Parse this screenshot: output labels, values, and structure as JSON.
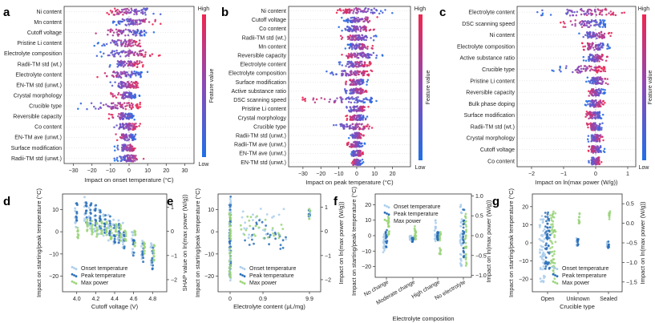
{
  "figure": {
    "panel_labels": [
      "a",
      "b",
      "c",
      "d",
      "e",
      "f",
      "g"
    ],
    "colors": {
      "low": "#1f6fe8",
      "high": "#f0264f",
      "onset": "#a9cdeb",
      "peak": "#2a6fb8",
      "maxpower": "#9ad47a"
    },
    "colorbar": {
      "high": "High",
      "low": "Low",
      "label": "Feature value"
    }
  },
  "chart_data": [
    {
      "type": "scatter",
      "subtype": "shap-beeswarm",
      "panel": "a",
      "xlabel": "Impact on onset temperature (°C)",
      "xlim": [
        -35,
        35
      ],
      "xticks": [
        "−30",
        "−20",
        "−10",
        "0",
        "10",
        "20",
        "30"
      ],
      "xtick_values": [
        -30,
        -20,
        -10,
        0,
        10,
        20,
        30
      ],
      "features": [
        "Ni content",
        "Mn content",
        "Cutoff voltage",
        "Pristine Li content",
        "Electrolyte composition",
        "Radii-TM std (wt.)",
        "Electrolyte content",
        "EN-TM std (unwt.)",
        "Crystal morphology",
        "Crucible type",
        "Reversible capacity",
        "Co content",
        "EN-TM ave (unwt.)",
        "Surface modification",
        "Radii-TM std (unwt.)"
      ],
      "spread": [
        [
          -15,
          19
        ],
        [
          -10,
          17
        ],
        [
          -20,
          14
        ],
        [
          -19,
          9
        ],
        [
          -18,
          17
        ],
        [
          -13,
          8
        ],
        [
          -18,
          10
        ],
        [
          -12,
          6
        ],
        [
          -10,
          6
        ],
        [
          -28,
          6
        ],
        [
          -12,
          4
        ],
        [
          -10,
          6
        ],
        [
          -8,
          4
        ],
        [
          -8,
          4
        ],
        [
          -8,
          8
        ]
      ],
      "high_side": [
        "L",
        "R",
        "L",
        "R",
        "R",
        "R",
        "L",
        "R",
        "L",
        "R",
        "L",
        "R",
        "L",
        "R",
        "R"
      ]
    },
    {
      "type": "scatter",
      "subtype": "shap-beeswarm",
      "panel": "b",
      "xlabel": "Impact on peak temperature (°C)",
      "xlim": [
        -38,
        30
      ],
      "xticks": [
        "−30",
        "−20",
        "−10",
        "0",
        "10",
        "20"
      ],
      "xtick_values": [
        -30,
        -20,
        -10,
        0,
        10,
        20
      ],
      "features": [
        "Ni content",
        "Cutoff voltage",
        "Co content",
        "Radii-TM std (wt.)",
        "Mn content",
        "Reversible capacity",
        "Electrolyte content",
        "Electrolyte composition",
        "Surface modification",
        "Active substance ratio",
        "DSC scanning speed",
        "Pristine Li content",
        "Crystal morphology",
        "Crucible type",
        "Radii-TM std (unwt.)",
        "Radii-TM ave (unwt.)",
        "EN-TM ave (unwt.)",
        "EN-TM std (unwt.)"
      ],
      "spread": [
        [
          -12,
          20
        ],
        [
          -9,
          12
        ],
        [
          -10,
          10
        ],
        [
          -9,
          11
        ],
        [
          -7,
          9
        ],
        [
          -9,
          15
        ],
        [
          -10,
          8
        ],
        [
          -18,
          9
        ],
        [
          -7,
          7
        ],
        [
          -8,
          7
        ],
        [
          -32,
          11
        ],
        [
          -8,
          7
        ],
        [
          -7,
          7
        ],
        [
          -18,
          12
        ],
        [
          -5,
          4
        ],
        [
          -6,
          5
        ],
        [
          -4,
          4
        ],
        [
          -4,
          4
        ]
      ],
      "high_side": [
        "L",
        "R",
        "R",
        "L",
        "R",
        "L",
        "R",
        "R",
        "L",
        "R",
        "L",
        "R",
        "L",
        "R",
        "R",
        "L",
        "R",
        "L"
      ]
    },
    {
      "type": "scatter",
      "subtype": "shap-beeswarm",
      "panel": "c",
      "xlabel": "Impact on ln(max power (W/g))",
      "xlim": [
        -2.45,
        1.25
      ],
      "xticks": [
        "−2",
        "−1",
        "0",
        "1"
      ],
      "xtick_values": [
        -2,
        -1,
        0,
        1
      ],
      "features": [
        "Electrolyte content",
        "DSC scanning speed",
        "Ni content",
        "Electrolyte composition",
        "Active substance ratio",
        "Crucible type",
        "Pristine Li content",
        "Reversible capacity",
        "Bulk phase doping",
        "Surface modification",
        "Radii-TM std (wt.)",
        "Crystal morphology",
        "Cutoff voltage",
        "Co content"
      ],
      "spread": [
        [
          -2.0,
          0.9
        ],
        [
          -1.1,
          0.4
        ],
        [
          -0.55,
          0.5
        ],
        [
          -0.45,
          0.45
        ],
        [
          -0.4,
          0.4
        ],
        [
          -1.4,
          0.3
        ],
        [
          -0.3,
          0.5
        ],
        [
          -0.3,
          0.3
        ],
        [
          -0.35,
          0.3
        ],
        [
          -0.35,
          0.25
        ],
        [
          -0.3,
          0.25
        ],
        [
          -0.25,
          0.25
        ],
        [
          -0.25,
          0.3
        ],
        [
          -0.25,
          0.2
        ]
      ],
      "high_side": [
        "R",
        "L",
        "R",
        "L",
        "R",
        "R",
        "R",
        "L",
        "R",
        "L",
        "L",
        "R",
        "L",
        "R"
      ]
    },
    {
      "type": "scatter",
      "subtype": "shap-dependence",
      "panel": "d",
      "xlabel": "Cutoff voltage (V)",
      "ylabel": "Impact on starting/peak temperature (°C)",
      "y2label": "SHAP value on ln(max power (W/g))",
      "xlim": [
        3.85,
        4.95
      ],
      "ylim": [
        -27,
        17
      ],
      "y2lim": [
        -2.5,
        1.55
      ],
      "xticks": [
        "4.0",
        "4.2",
        "4.4",
        "4.6",
        "4.8"
      ],
      "xtick_values": [
        4.0,
        4.2,
        4.4,
        4.6,
        4.8
      ],
      "yticks": [
        "−20",
        "−10",
        "0",
        "10"
      ],
      "ytick_values": [
        -20,
        -10,
        0,
        10
      ],
      "y2ticks": [
        "−2",
        "−1",
        "0",
        "1"
      ],
      "y2tick_values": [
        -2,
        -1,
        0,
        1
      ],
      "legend": [
        "Onset temperature",
        "Peak temperature",
        "Max power"
      ],
      "x": [
        4.0,
        4.1,
        4.15,
        4.2,
        4.25,
        4.3,
        4.35,
        4.4,
        4.45,
        4.5,
        4.6,
        4.7,
        4.8
      ],
      "series": [
        {
          "name": "Onset temperature",
          "means": [
            8,
            10,
            7,
            6,
            4,
            3,
            2,
            0,
            0,
            -2,
            -5,
            -8,
            -10
          ],
          "spread": 6
        },
        {
          "name": "Peak temperature",
          "means": [
            10,
            9,
            8,
            7,
            5,
            3,
            2,
            0,
            -1,
            -3,
            -6,
            -9,
            -12
          ],
          "spread": 5
        },
        {
          "name": "Max power",
          "means": [
            -0.1,
            0.2,
            0.15,
            0.1,
            0.1,
            0.05,
            0.0,
            0.0,
            -0.05,
            -0.1,
            -0.3,
            -0.6,
            -0.9
          ],
          "spread": 0.35
        }
      ]
    },
    {
      "type": "scatter",
      "subtype": "shap-dependence",
      "panel": "e",
      "xlabel": "Electrolyte content (μL/mg)",
      "ylabel": "Impact on starting/peak temperature (°C)",
      "y2label": "Impact on ln(max power (W/g))",
      "ylim": [
        -27,
        17
      ],
      "y2lim": [
        -2.5,
        1.55
      ],
      "xticks": [
        "0",
        "0.9",
        "9.9"
      ],
      "yticks": [
        "−20",
        "−10",
        "0",
        "10"
      ],
      "ytick_values": [
        -20,
        -10,
        0,
        10
      ],
      "y2ticks": [
        "−2",
        "−1",
        "0",
        "1"
      ],
      "y2tick_values": [
        -2,
        -1,
        0,
        1
      ],
      "legend": [
        "Onset temperature",
        "Peak temperature",
        "Max power"
      ],
      "note": "x axis is non-linear; groups at 0 (wide spread), 0.1–1.2 (cluster) and 9.9",
      "groups": [
        {
          "x": "0",
          "onset_range": [
            -22,
            15
          ],
          "peak_range": [
            -22,
            16
          ],
          "power_range": [
            -2.0,
            0.8
          ]
        },
        {
          "x": "0.1-1.2",
          "onset_range": [
            -4,
            12
          ],
          "peak_range": [
            -8,
            6
          ],
          "power_range": [
            -0.3,
            0.7
          ]
        },
        {
          "x": "9.9",
          "onset_range": [
            6,
            10
          ],
          "peak_range": [
            7,
            10
          ],
          "power_range": [
            0.5,
            1.0
          ]
        }
      ]
    },
    {
      "type": "scatter",
      "subtype": "shap-dependence",
      "panel": "f",
      "xlabel": "Electrolyte composition",
      "ylabel": "Impact on starting/peak temperature (°C)",
      "y2label": "Impact on ln(max power (W/g))",
      "ylim": [
        -27,
        27
      ],
      "y2lim": [
        -1.05,
        1.05
      ],
      "categories": [
        "No change",
        "Moderate change",
        "High change",
        "No electrolyte"
      ],
      "yticks": [
        "−20",
        "−10",
        "0",
        "10",
        "20"
      ],
      "ytick_values": [
        -20,
        -10,
        0,
        10,
        20
      ],
      "y2ticks": [
        "−1.0",
        "−0.5",
        "0.0",
        "0.5",
        "1.0"
      ],
      "y2tick_values": [
        -1.0,
        -0.5,
        0.0,
        0.5,
        1.0
      ],
      "legend": [
        "Onset temperature",
        "Peak temperature",
        "Max power"
      ],
      "series": [
        {
          "name": "Onset temperature",
          "ranges": [
            [
              -11,
              3
            ],
            [
              -3,
              0
            ],
            [
              -4,
              10
            ],
            [
              -20,
              20
            ]
          ]
        },
        {
          "name": "Peak temperature",
          "ranges": [
            [
              -8,
              4
            ],
            [
              -4,
              -1
            ],
            [
              -3,
              3
            ],
            [
              -15,
              17
            ]
          ]
        },
        {
          "name": "Max power",
          "ranges": [
            [
              0.0,
              0.5
            ],
            [
              -0.1,
              0.25
            ],
            [
              -0.5,
              0.1
            ],
            [
              -0.85,
              0.55
            ]
          ]
        }
      ]
    },
    {
      "type": "scatter",
      "subtype": "shap-dependence",
      "panel": "g",
      "xlabel": "Crucible type",
      "ylabel": "Impact on starting/peak temperature (°C)",
      "y2label": "Impact on ln(max power (W/g))",
      "ylim": [
        -27,
        27
      ],
      "y2lim": [
        -1.75,
        0.75
      ],
      "categories": [
        "Open",
        "Unknown",
        "Sealed"
      ],
      "yticks": [
        "−20",
        "−10",
        "0",
        "10",
        "20"
      ],
      "ytick_values": [
        -20,
        -10,
        0,
        10,
        20
      ],
      "y2ticks": [
        "−1.5",
        "−1.0",
        "−0.5",
        "0.0",
        "0.5"
      ],
      "y2tick_values": [
        -1.5,
        -1.0,
        -0.5,
        0.0,
        0.5
      ],
      "legend": [
        "Onset temperature",
        "Peak temperature",
        "Max power"
      ],
      "series": [
        {
          "name": "Onset temperature",
          "ranges": [
            [
              -22,
              17
            ],
            [
              -2,
              4
            ],
            [
              -3,
              1
            ]
          ]
        },
        {
          "name": "Peak temperature",
          "ranges": [
            [
              -15,
              17
            ],
            [
              -2,
              3
            ],
            [
              -3,
              1
            ]
          ]
        },
        {
          "name": "Max power",
          "ranges": [
            [
              -1.5,
              0.3
            ],
            [
              0.0,
              0.3
            ],
            [
              0.1,
              0.4
            ]
          ]
        }
      ]
    }
  ]
}
